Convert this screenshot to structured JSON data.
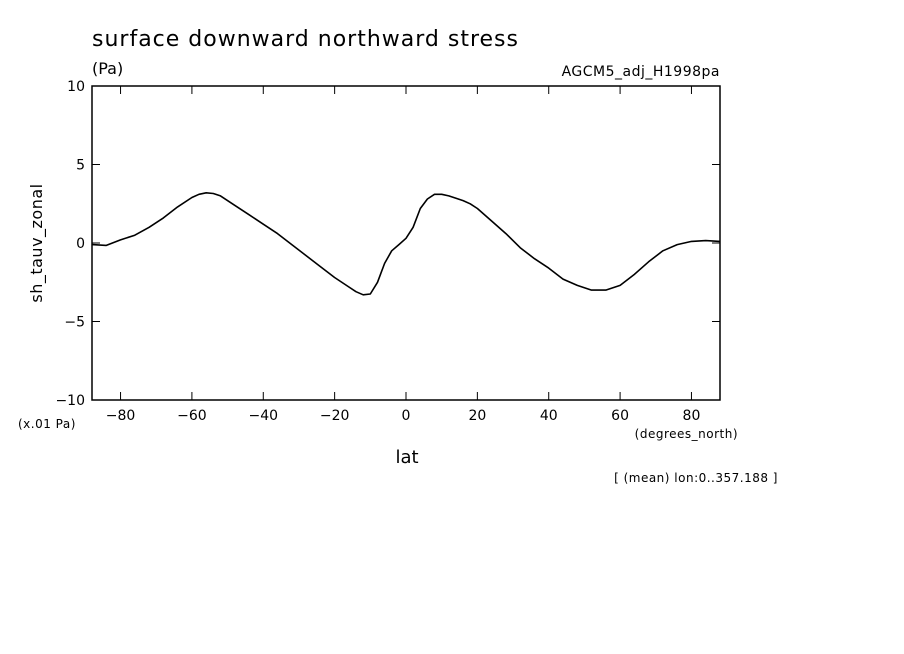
{
  "chart_data": {
    "type": "line",
    "title": "surface downward northward stress",
    "units": "(Pa)",
    "dataset": "AGCM5_adj_H1998pa",
    "xlabel": "lat",
    "ylabel": "sh_tauv_zonal",
    "x_units": "(degrees_north)",
    "y_scale_note": "(x.01 Pa)",
    "footnote": "[ (mean) lon:0..357.188 ]",
    "xlim": [
      -88,
      88
    ],
    "ylim": [
      -10,
      10
    ],
    "x_ticks": [
      -80,
      -60,
      -40,
      -20,
      0,
      20,
      40,
      60,
      80
    ],
    "x_tick_labels": [
      "−80",
      "−60",
      "−40",
      "−20",
      "0",
      "20",
      "40",
      "60",
      "80"
    ],
    "y_ticks": [
      10,
      5,
      0,
      -5,
      -10
    ],
    "y_tick_labels": [
      "10",
      "5",
      "0",
      "−5",
      "−10"
    ],
    "grid": false,
    "series": [
      {
        "x": [
          -88,
          -84,
          -80,
          -76,
          -72,
          -68,
          -64,
          -60,
          -58,
          -56,
          -54,
          -52,
          -48,
          -44,
          -40,
          -36,
          -32,
          -28,
          -24,
          -20,
          -16,
          -14,
          -12,
          -10,
          -8,
          -6,
          -4,
          -2,
          0,
          2,
          4,
          6,
          8,
          10,
          12,
          14,
          16,
          18,
          20,
          24,
          28,
          32,
          36,
          40,
          44,
          48,
          52,
          56,
          60,
          64,
          68,
          72,
          76,
          80,
          84,
          88
        ],
        "y": [
          -0.1,
          -0.15,
          0.2,
          0.5,
          1.0,
          1.6,
          2.3,
          2.9,
          3.1,
          3.2,
          3.15,
          3.0,
          2.4,
          1.8,
          1.2,
          0.6,
          -0.1,
          -0.8,
          -1.5,
          -2.2,
          -2.8,
          -3.1,
          -3.3,
          -3.25,
          -2.5,
          -1.3,
          -0.5,
          -0.1,
          0.3,
          1.0,
          2.2,
          2.8,
          3.1,
          3.1,
          3.0,
          2.85,
          2.7,
          2.5,
          2.2,
          1.4,
          0.6,
          -0.3,
          -1.0,
          -1.6,
          -2.3,
          -2.7,
          -3.0,
          -3.0,
          -2.7,
          -2.0,
          -1.2,
          -0.5,
          -0.1,
          0.1,
          0.15,
          0.1
        ]
      }
    ]
  }
}
